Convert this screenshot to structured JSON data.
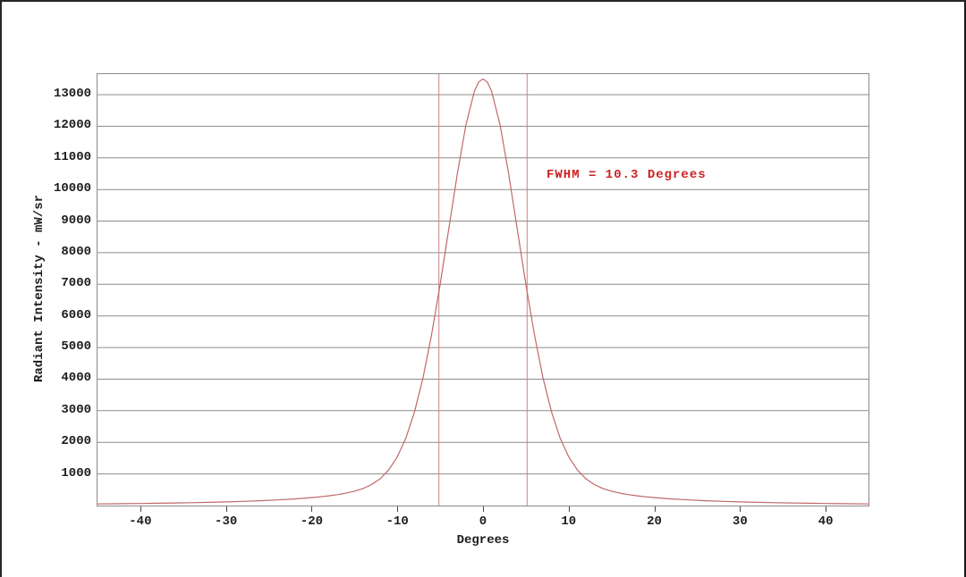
{
  "chart_data": {
    "type": "line",
    "title": "",
    "xlabel": "Degrees",
    "ylabel": "Radiant Intensity - mW/sr",
    "xlim": [
      -45,
      45
    ],
    "ylim": [
      0,
      13650
    ],
    "xticks": [
      -40,
      -30,
      -20,
      -10,
      0,
      10,
      20,
      30,
      40
    ],
    "yticks": [
      1000,
      2000,
      3000,
      4000,
      5000,
      6000,
      7000,
      8000,
      9000,
      10000,
      11000,
      12000,
      13000
    ],
    "grid": "horizontal-only",
    "legend": "none",
    "colors": {
      "background": "#ffffff",
      "plot_border": "#8a8a8a",
      "gridline": "#8c8c8c",
      "tick_text": "#1c1c1c",
      "curve": "#c06868",
      "fwhm_line": "#cc8282",
      "fwhm_text": "#cc2222"
    },
    "series": [
      {
        "name": "radiant-intensity-vs-angle",
        "peak_value_mw_sr": 13500,
        "peak_center_deg": 0,
        "x": [
          -45,
          -42,
          -40,
          -38,
          -36,
          -34,
          -32,
          -30,
          -28,
          -26,
          -24,
          -22,
          -20,
          -19,
          -18,
          -17,
          -16,
          -15,
          -14,
          -13,
          -12,
          -11,
          -10,
          -9,
          -8,
          -7,
          -6,
          -5,
          -4,
          -3,
          -2,
          -1,
          -0.5,
          0,
          0.5,
          1,
          2,
          3,
          4,
          5,
          6,
          7,
          8,
          9,
          10,
          11,
          12,
          13,
          14,
          15,
          16,
          17,
          18,
          19,
          20,
          22,
          24,
          26,
          28,
          30,
          32,
          34,
          36,
          38,
          40,
          42,
          45
        ],
        "y": [
          52,
          60,
          66,
          73,
          81,
          91,
          102,
          116,
          132,
          153,
          178,
          210,
          252,
          278,
          308,
          346,
          392,
          454,
          539,
          664,
          849,
          1128,
          1542,
          2137,
          2962,
          4048,
          5407,
          7001,
          8747,
          10493,
          12031,
          13109,
          13401,
          13500,
          13401,
          13109,
          12031,
          10493,
          8747,
          7001,
          5407,
          4048,
          2962,
          2137,
          1542,
          1128,
          849,
          664,
          539,
          454,
          392,
          346,
          308,
          278,
          252,
          210,
          178,
          153,
          132,
          116,
          102,
          91,
          81,
          73,
          66,
          60,
          52
        ]
      }
    ],
    "annotations": {
      "fwhm_label": "FWHM = 10.3 Degrees",
      "fwhm_degrees": 10.3,
      "fwhm_line_positions_deg": [
        -5.15,
        5.15
      ],
      "fwhm_label_anchor": {
        "x_deg": 7.4,
        "y_value": 10450
      }
    }
  }
}
